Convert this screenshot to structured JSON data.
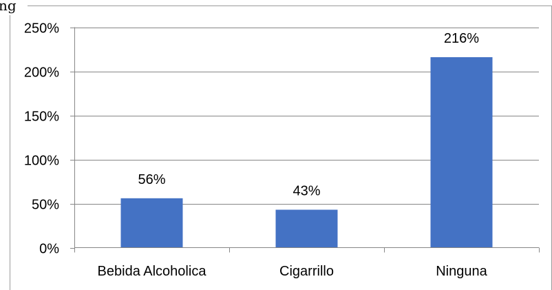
{
  "cut_text": "ng",
  "colors": {
    "bar": "#4472C4",
    "grid": "#868686",
    "frame": "#9a9a9a",
    "text": "#000000"
  },
  "chart_data": {
    "type": "bar",
    "categories": [
      "Bebida Alcoholica",
      "Cigarrillo",
      "Ninguna"
    ],
    "values": [
      56,
      43,
      216
    ],
    "data_labels": [
      "56%",
      "43%",
      "216%"
    ],
    "ylim": [
      0,
      250
    ],
    "yticks": [
      0,
      50,
      100,
      150,
      200,
      250
    ],
    "ytick_labels": [
      "0%",
      "50%",
      "100%",
      "150%",
      "200%",
      "250%"
    ],
    "grid": true,
    "legend": "none",
    "title": "",
    "xlabel": "",
    "ylabel": ""
  }
}
